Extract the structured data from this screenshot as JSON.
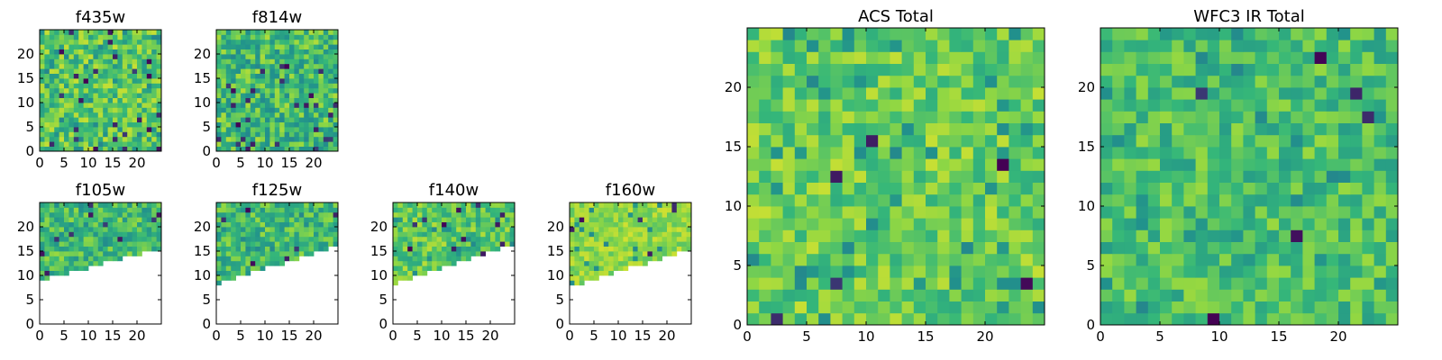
{
  "figure": {
    "colormap": "viridis",
    "colormap_stops": [
      "#440154",
      "#31688e",
      "#21918c",
      "#35b779",
      "#90d743",
      "#fde725"
    ],
    "background": "#ffffff"
  },
  "chart_data": [
    {
      "type": "heatmap",
      "title": "f435w",
      "grid_size": 25,
      "xticks": [
        0,
        5,
        10,
        15,
        20
      ],
      "yticks": [
        0,
        5,
        10,
        15,
        20
      ],
      "xlim": [
        0,
        25
      ],
      "ylim": [
        0,
        25
      ],
      "value_range": [
        0,
        1
      ],
      "value_bias": 0.68,
      "value_spread": 0.22,
      "dark_fraction": 0.04,
      "coverage": "full",
      "seed": 11
    },
    {
      "type": "heatmap",
      "title": "f814w",
      "grid_size": 25,
      "xticks": [
        0,
        5,
        10,
        15,
        20
      ],
      "yticks": [
        0,
        5,
        10,
        15,
        20
      ],
      "xlim": [
        0,
        25
      ],
      "ylim": [
        0,
        25
      ],
      "value_range": [
        0,
        1
      ],
      "value_bias": 0.62,
      "value_spread": 0.24,
      "dark_fraction": 0.05,
      "coverage": "full",
      "seed": 23
    },
    {
      "type": "heatmap",
      "title": "f105w",
      "grid_size": 25,
      "xticks": [
        0,
        5,
        10,
        15,
        20
      ],
      "yticks": [
        0,
        5,
        10,
        15,
        20
      ],
      "xlim": [
        0,
        25
      ],
      "ylim": [
        0,
        25
      ],
      "value_range": [
        0,
        1
      ],
      "value_bias": 0.62,
      "value_spread": 0.2,
      "dark_fraction": 0.03,
      "coverage": "partial",
      "coverage_edge": {
        "y_at_x0": 9.5,
        "y_at_x25": 16.0
      },
      "seed": 37
    },
    {
      "type": "heatmap",
      "title": "f125w",
      "grid_size": 25,
      "xticks": [
        0,
        5,
        10,
        15,
        20
      ],
      "yticks": [
        0,
        5,
        10,
        15,
        20
      ],
      "xlim": [
        0,
        25
      ],
      "ylim": [
        0,
        25
      ],
      "value_range": [
        0,
        1
      ],
      "value_bias": 0.62,
      "value_spread": 0.2,
      "dark_fraction": 0.03,
      "coverage": "partial",
      "coverage_edge": {
        "y_at_x0": 8.8,
        "y_at_x25": 16.5
      },
      "seed": 41
    },
    {
      "type": "heatmap",
      "title": "f140w",
      "grid_size": 25,
      "xticks": [
        0,
        5,
        10,
        15,
        20
      ],
      "yticks": [
        0,
        5,
        10,
        15,
        20
      ],
      "xlim": [
        0,
        25
      ],
      "ylim": [
        0,
        25
      ],
      "value_range": [
        0,
        1
      ],
      "value_bias": 0.68,
      "value_spread": 0.2,
      "dark_fraction": 0.04,
      "coverage": "partial",
      "coverage_edge": {
        "y_at_x0": 8.5,
        "y_at_x25": 17.0
      },
      "seed": 53
    },
    {
      "type": "heatmap",
      "title": "f160w",
      "grid_size": 25,
      "xticks": [
        0,
        5,
        10,
        15,
        20
      ],
      "yticks": [
        0,
        5,
        10,
        15,
        20
      ],
      "xlim": [
        0,
        25
      ],
      "ylim": [
        0,
        25
      ],
      "value_range": [
        0,
        1
      ],
      "value_bias": 0.8,
      "value_spread": 0.12,
      "dark_fraction": 0.015,
      "coverage": "partial",
      "coverage_edge": {
        "y_at_x0": 8.0,
        "y_at_x25": 16.0
      },
      "seed": 67
    },
    {
      "type": "heatmap",
      "title": "ACS Total",
      "grid_size": 25,
      "xticks": [
        0,
        5,
        10,
        15,
        20
      ],
      "yticks": [
        0,
        5,
        10,
        15,
        20
      ],
      "xlim": [
        0,
        25
      ],
      "ylim": [
        0,
        25
      ],
      "value_range": [
        0,
        1
      ],
      "value_bias": 0.72,
      "value_spread": 0.18,
      "dark_fraction": 0.025,
      "coverage": "full",
      "seed": 79
    },
    {
      "type": "heatmap",
      "title": "WFC3 IR Total",
      "grid_size": 25,
      "xticks": [
        0,
        5,
        10,
        15,
        20
      ],
      "yticks": [
        0,
        5,
        10,
        15,
        20
      ],
      "xlim": [
        0,
        25
      ],
      "ylim": [
        0,
        25
      ],
      "value_range": [
        0,
        1
      ],
      "value_bias": 0.64,
      "value_spread": 0.18,
      "dark_fraction": 0.025,
      "coverage": "full",
      "seed": 97
    }
  ]
}
